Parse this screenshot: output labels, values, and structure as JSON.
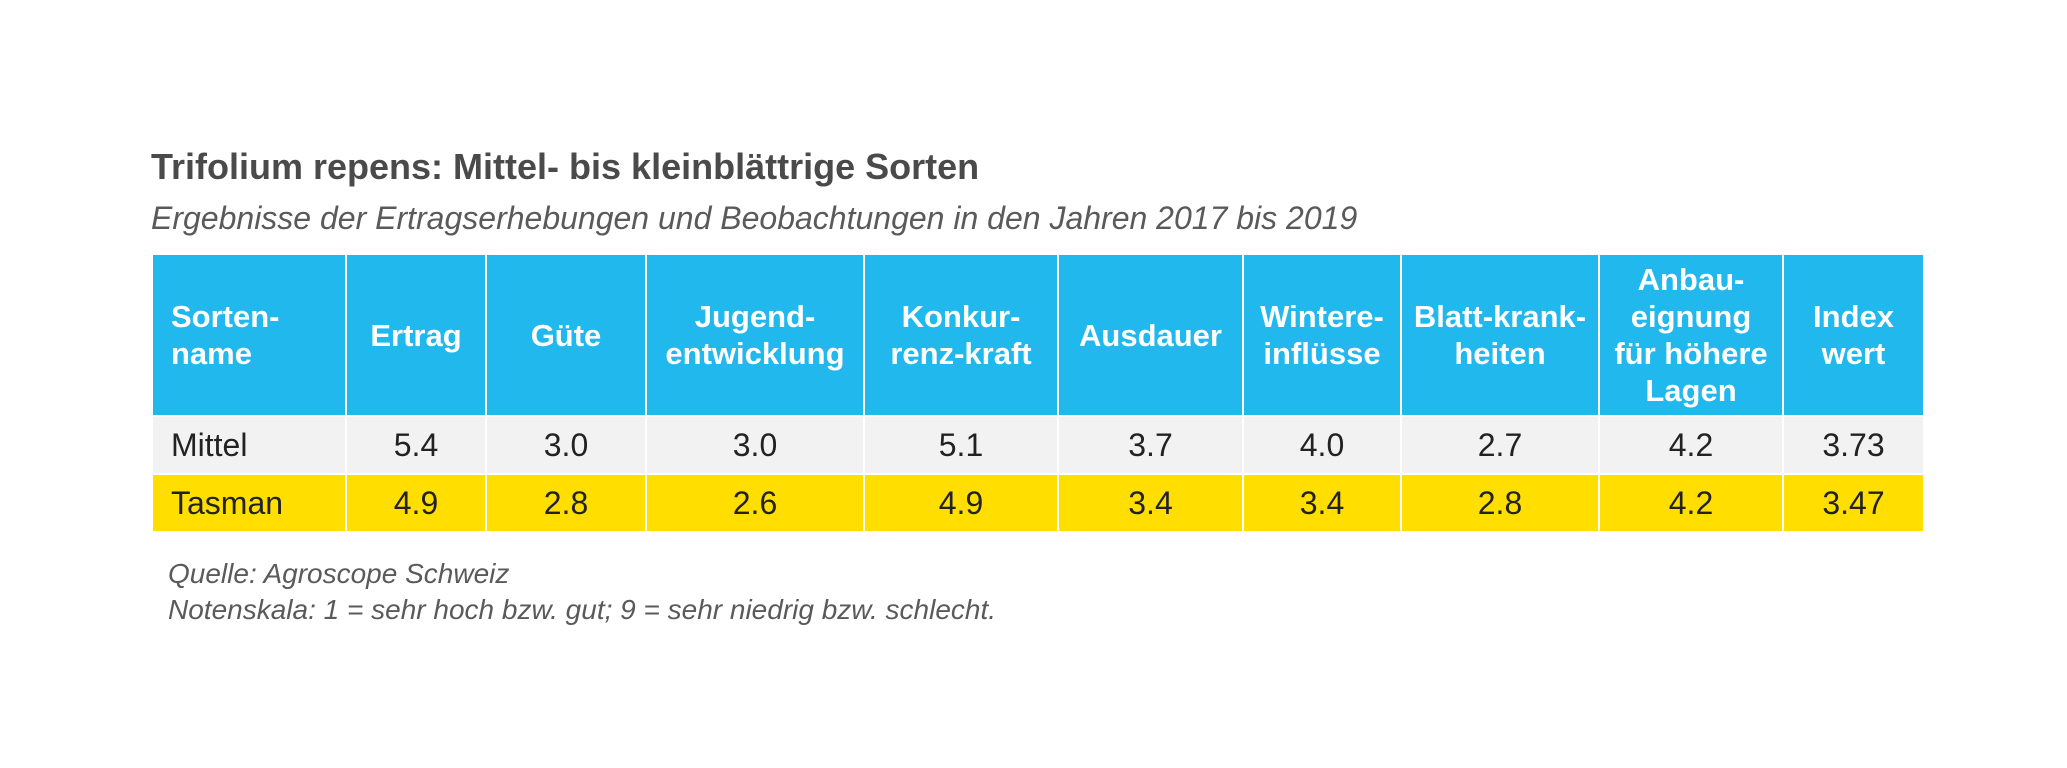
{
  "title": "Trifolium repens: Mittel- bis kleinblättrige Sorten",
  "subtitle": "Ergebnisse der Ertragserhebungen und Beobachtungen in den Jahren 2017 bis 2019",
  "table": {
    "headers": [
      [
        "Sorten-",
        "name"
      ],
      [
        "Ertrag"
      ],
      [
        "Güte"
      ],
      [
        "Jugend-",
        "entwicklung"
      ],
      [
        "Konkur-",
        "renz-kraft"
      ],
      [
        "Ausdauer"
      ],
      [
        "Wintere-",
        "inflüsse"
      ],
      [
        "Blatt-krank-",
        "heiten"
      ],
      [
        "Anbau-",
        "eignung",
        "für höhere",
        "Lagen"
      ],
      [
        "Index",
        "wert"
      ]
    ],
    "rows": [
      {
        "name": "Mittel",
        "values": [
          "5.4",
          "3.0",
          "3.0",
          "5.1",
          "3.7",
          "4.0",
          "2.7",
          "4.2",
          "3.73"
        ]
      },
      {
        "name": "Tasman",
        "values": [
          "4.9",
          "2.8",
          "2.6",
          "4.9",
          "3.4",
          "3.4",
          "2.8",
          "4.2",
          "3.47"
        ]
      }
    ]
  },
  "footnotes": {
    "source": "Quelle: Agroscope Schweiz",
    "scale": "Notenskala: 1 = sehr hoch bzw. gut; 9 = sehr niedrig bzw. schlecht."
  },
  "colors": {
    "header_bg": "#21b8ee",
    "row_mittel_bg": "#f2f2f2",
    "row_tasman_bg": "#ffde00"
  }
}
